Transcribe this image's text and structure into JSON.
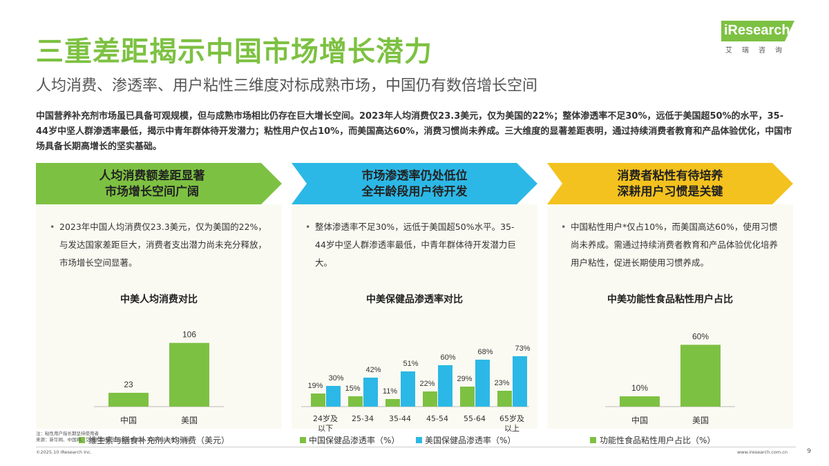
{
  "header": {
    "title": "三重差距揭示中国市场增长潜力",
    "subtitle": "人均消费、渗透率、用户粘性三维度对标成熟市场，中国仍有数倍增长空间",
    "intro": "中国营养补充剂市场虽已具备可观规模，但与成熟市场相比仍存在巨大增长空间。2023年人均消费仅23.3美元，仅为美国的22%；整体渗透率不足30%，远低于美国超50%的水平，35-44岁中坚人群渗透率最低，揭示中青年群体待开发潜力；粘性用户仅占10%，而美国高达60%，消费习惯尚未养成。三大维度的显著差距表明，通过持续消费者教育和产品体验优化，中国市场具备长期高增长的坚实基础。"
  },
  "logo": {
    "brand": "iResearch",
    "brand_cn": "艾瑞咨询"
  },
  "colors": {
    "green": "#7dc142",
    "blue": "#2cb8e6",
    "yellow": "#f4c21e",
    "panel_bg": "#fbfaf2"
  },
  "panels": [
    {
      "band_line1": "人均消费额差距显著",
      "band_line2": "市场增长空间广阔",
      "bullet": "2023年中国人均消费仅23.3美元，仅为美国的22%，与发达国家差距巨大，消费者支出潜力尚未充分释放，市场增长空间显著。",
      "chart_title": "中美人均消费对比"
    },
    {
      "band_line1": "市场渗透率仍处低位",
      "band_line2": "全年龄段用户待开发",
      "bullet": "整体渗透率不足30%，远低于美国超50%水平。35-44岁中坚人群渗透率最低，中青年群体待开发潜力巨大。",
      "chart_title": "中美保健品渗透率对比"
    },
    {
      "band_line1": "消费者粘性有待培养",
      "band_line2": "深耕用户习惯是关键",
      "bullet": "中国粘性用户*仅占10%，而美国高达60%，使用习惯尚未养成。需通过持续消费者教育和产品体验优化培养用户粘性，促进长期使用习惯养成。",
      "chart_title": "中美功能性食品粘性用户占比"
    }
  ],
  "chart_data": [
    {
      "type": "bar",
      "title": "中美人均消费对比",
      "categories": [
        "中国",
        "美国"
      ],
      "series": [
        {
          "name": "维生素与膳食补充剂人均消费（美元）",
          "values": [
            23,
            106
          ],
          "labels": [
            "23",
            "106"
          ]
        }
      ],
      "ylim": [
        0,
        120
      ],
      "legend": "bottom"
    },
    {
      "type": "bar",
      "title": "中美保健品渗透率对比",
      "categories": [
        "24岁及以下",
        "25-34",
        "35-44",
        "45-54",
        "55-64",
        "65岁及以上"
      ],
      "categories_line1": [
        "24岁及",
        "25-34",
        "35-44",
        "45-54",
        "55-64",
        "65岁及"
      ],
      "categories_line2": [
        "以下",
        "",
        "",
        "",
        "",
        "以上"
      ],
      "series": [
        {
          "name": "中国保健品渗透率（%）",
          "values": [
            19,
            15,
            11,
            22,
            29,
            23
          ],
          "labels": [
            "19%",
            "15%",
            "11%",
            "22%",
            "29%",
            "23%"
          ]
        },
        {
          "name": "美国保健品渗透率（%）",
          "values": [
            30,
            42,
            51,
            60,
            68,
            73
          ],
          "labels": [
            "30%",
            "42%",
            "51%",
            "60%",
            "68%",
            "73%"
          ]
        }
      ],
      "ylim": [
        0,
        80
      ],
      "legend": "bottom"
    },
    {
      "type": "bar",
      "title": "中美功能性食品粘性用户占比",
      "categories": [
        "中国",
        "美国"
      ],
      "series": [
        {
          "name": "功能性食品粘性用户占比（%）",
          "values": [
            10,
            60
          ],
          "labels": [
            "10%",
            "60%"
          ]
        }
      ],
      "ylim": [
        0,
        70
      ],
      "legend": "bottom"
    }
  ],
  "footer": {
    "note1": "注：粘性用户指长期坚持使用者",
    "note2": "来源：新华网、中国网、艾瑞消费研究院根据公开资料、专家访谈整理及绘制。",
    "copyright": "©2025.10 iResearch Inc.",
    "website": "www.iresearch.com.cn",
    "page": "9"
  }
}
